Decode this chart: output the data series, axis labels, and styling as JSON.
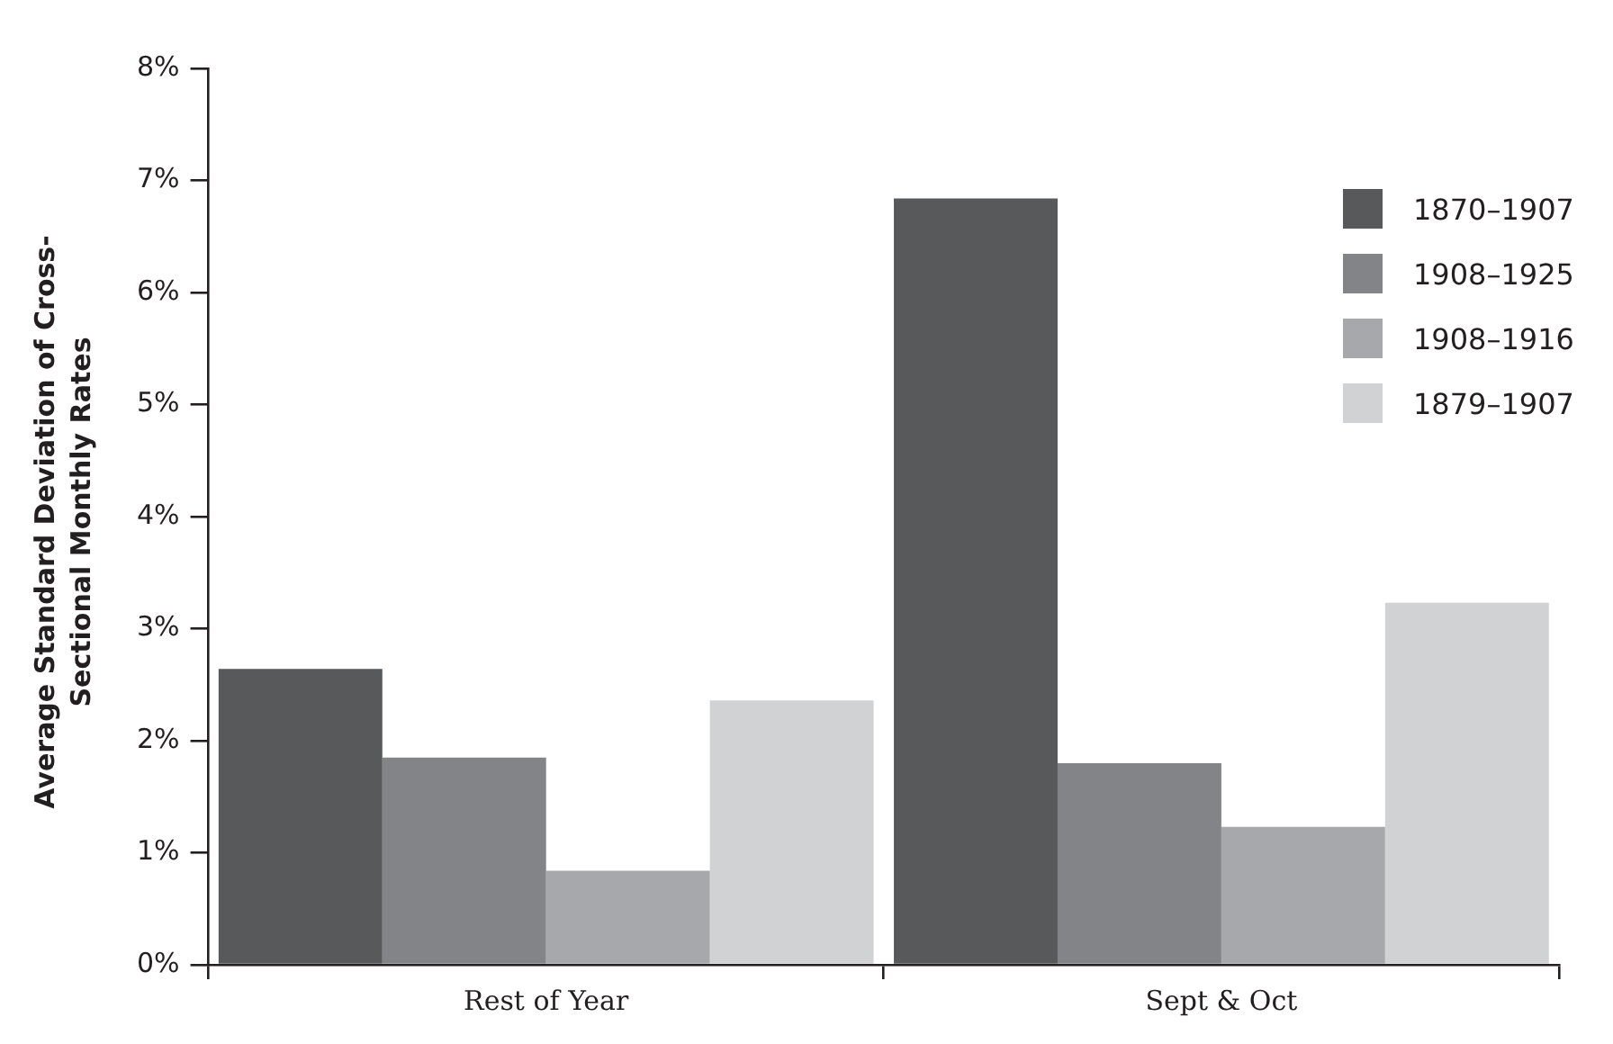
{
  "chart_data": {
    "type": "bar",
    "ylabel": "Average Standard Deviation of Cross-Sectional Monthly Rates",
    "categories": [
      "Rest of Year",
      "Sept & Oct"
    ],
    "series": [
      {
        "name": "1870–1907",
        "color": "#58595b",
        "values": [
          2.64,
          6.84
        ]
      },
      {
        "name": "1908–1925",
        "color": "#838487",
        "values": [
          1.85,
          1.8
        ]
      },
      {
        "name": "1908–1916",
        "color": "#a7a8ab",
        "values": [
          0.84,
          1.23
        ]
      },
      {
        "name": "1879–1907",
        "color": "#d1d2d4",
        "values": [
          2.36,
          3.23
        ]
      }
    ],
    "ylim": [
      0,
      8
    ],
    "yticks": [
      {
        "value": 0,
        "label": "0%"
      },
      {
        "value": 1,
        "label": "1%"
      },
      {
        "value": 2,
        "label": "2%"
      },
      {
        "value": 3,
        "label": "3%"
      },
      {
        "value": 4,
        "label": "4%"
      },
      {
        "value": 5,
        "label": "5%"
      },
      {
        "value": 6,
        "label": "6%"
      },
      {
        "value": 7,
        "label": "7%"
      },
      {
        "value": 8,
        "label": "8%"
      }
    ],
    "grid": false,
    "legend": "right"
  }
}
